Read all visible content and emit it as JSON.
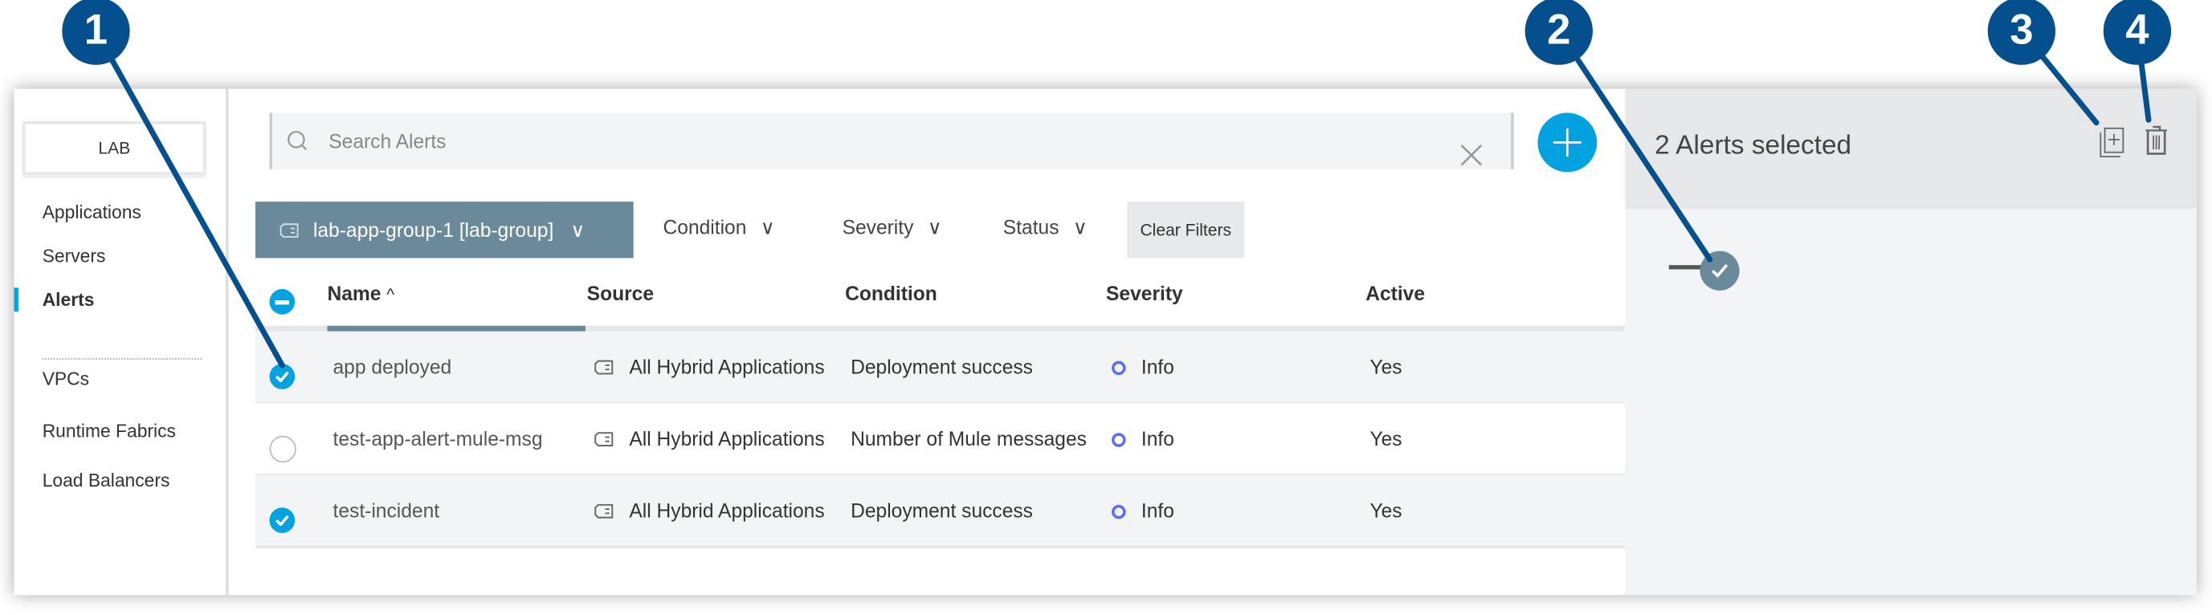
{
  "sidebar": {
    "org": "LAB",
    "items": [
      {
        "label": "Applications"
      },
      {
        "label": "Servers"
      },
      {
        "label": "Alerts",
        "active": true
      },
      {
        "label": "VPCs"
      },
      {
        "label": "Runtime Fabrics"
      },
      {
        "label": "Load Balancers"
      }
    ]
  },
  "search": {
    "placeholder": "Search Alerts"
  },
  "filters": {
    "group": "lab-app-group-1 [lab-group]",
    "condition": "Condition",
    "severity": "Severity",
    "status": "Status",
    "clear": "Clear Filters"
  },
  "table": {
    "headers": {
      "name": "Name",
      "source": "Source",
      "condition": "Condition",
      "severity": "Severity",
      "active": "Active"
    },
    "sort_indicator": "^",
    "rows": [
      {
        "selected": true,
        "name": "app deployed",
        "source": "All Hybrid Applications",
        "condition": "Deployment success",
        "severity": "Info",
        "active": "Yes"
      },
      {
        "selected": false,
        "name": "test-app-alert-mule-msg",
        "source": "All Hybrid Applications",
        "condition": "Number of Mule messages",
        "severity": "Info",
        "active": "Yes"
      },
      {
        "selected": true,
        "name": "test-incident",
        "source": "All Hybrid Applications",
        "condition": "Deployment success",
        "severity": "Info",
        "active": "Yes"
      }
    ]
  },
  "detail": {
    "title": "2 Alerts selected",
    "toggle_on": true
  },
  "callouts": [
    "1",
    "2",
    "3",
    "4"
  ],
  "colors": {
    "accent": "#00a2df",
    "group": "#6b8a99",
    "callout": "#04508f",
    "info": "#5b6ef5"
  }
}
